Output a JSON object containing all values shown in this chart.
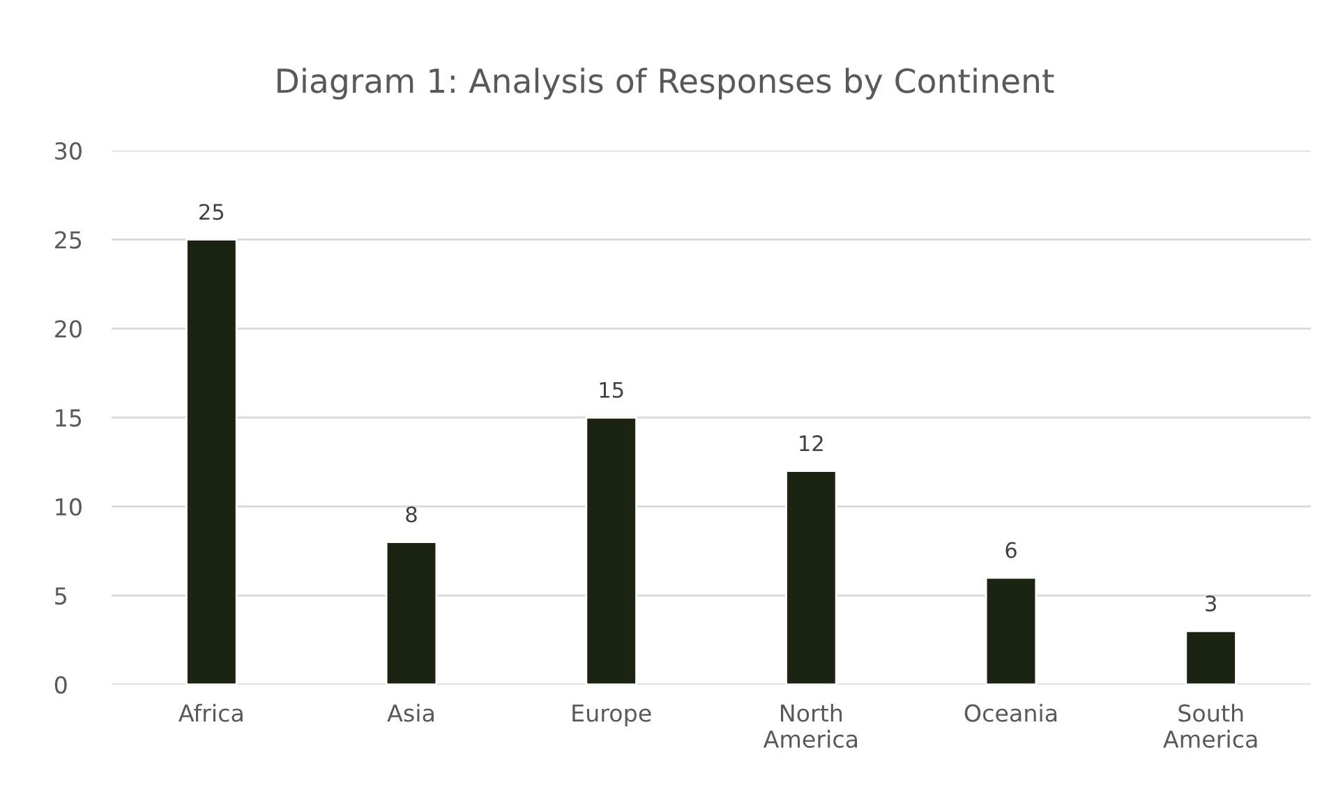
{
  "chart_data": {
    "type": "bar",
    "title": "Diagram 1: Analysis of Responses by Continent",
    "categories": [
      "Africa",
      "Asia",
      "Europe",
      "North America",
      "Oceania",
      "South America"
    ],
    "values": [
      25,
      8,
      15,
      12,
      6,
      3
    ],
    "color": "#1a2410",
    "ylim": [
      0,
      30
    ],
    "yticks": [
      0,
      5,
      10,
      15,
      20,
      25,
      30
    ],
    "grid": "y",
    "data_labels": true
  }
}
